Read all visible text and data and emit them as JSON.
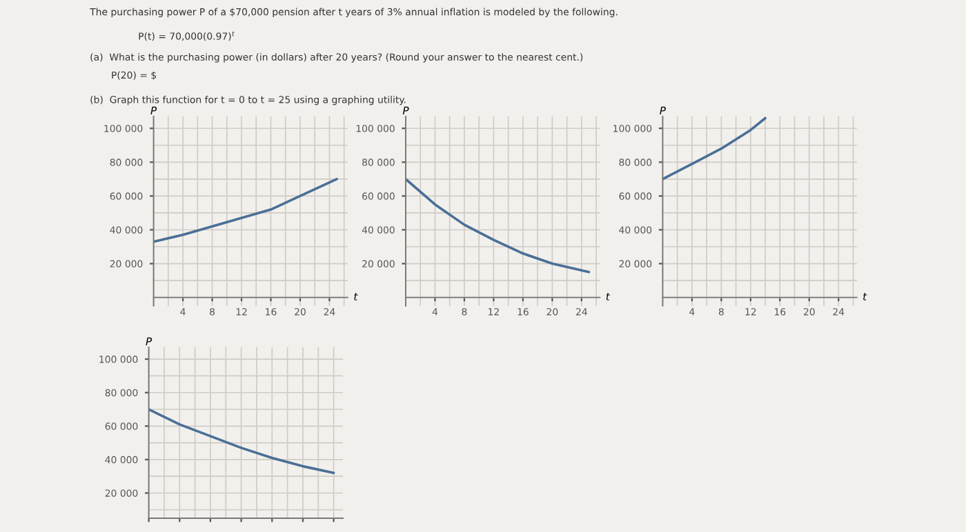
{
  "chart_data": [
    {
      "type": "line",
      "annotations": [
        "The purchasing power P of a $70,000 pension after t years of 3% annual inflation is modeled by the following.",
        "P(t) = 70,000(0.97)$^{t}$",
        "(a)  What is the purchasing power (in dollars) after 20 years? (Round your answer to the nearest cent.)",
        "P(20) = $",
        "(b)  Graph this function for t = 0 to t = 25 using a graphing utility."
      ],
      "xlabel": "t",
      "ylabel": "P",
      "x": [
        0,
        4,
        8,
        12,
        16,
        20,
        25
      ],
      "series": [
        {
          "color": "#4a6f96",
          "values": [
            33000,
            37000,
            42000,
            47000,
            52000,
            60000,
            70000
          ]
        }
      ],
      "xlim": [
        0,
        26.5
      ],
      "ylim": [
        -5000,
        107000
      ],
      "xticks": [
        4,
        8,
        12,
        16,
        20,
        24
      ],
      "yticks": [
        {
          "value": 20000,
          "label": "20 000"
        },
        {
          "value": 40000,
          "label": "40 000"
        },
        {
          "value": 60000,
          "label": "60 000"
        },
        {
          "value": 80000,
          "label": "80 000"
        },
        {
          "value": 100000,
          "label": "100 000"
        }
      ],
      "grid": true
    },
    {
      "type": "line",
      "xlabel": "t",
      "ylabel": "P",
      "x": [
        0,
        4,
        8,
        12,
        16,
        20,
        25
      ],
      "series": [
        {
          "color": "#4a6f96",
          "values": [
            70000,
            55000,
            43000,
            34000,
            26000,
            20000,
            15000
          ]
        }
      ],
      "xlim": [
        0,
        26.5
      ],
      "ylim": [
        -5000,
        107000
      ],
      "xticks": [
        4,
        8,
        12,
        16,
        20,
        24
      ],
      "yticks": [
        {
          "value": 20000,
          "label": "20 000"
        },
        {
          "value": 40000,
          "label": "40 000"
        },
        {
          "value": 60000,
          "label": "60 000"
        },
        {
          "value": 80000,
          "label": "80 000"
        },
        {
          "value": 100000,
          "label": "100 000"
        }
      ],
      "grid": true
    },
    {
      "type": "line",
      "xlabel": "t",
      "ylabel": "P",
      "x": [
        0,
        4,
        8,
        12,
        14
      ],
      "series": [
        {
          "color": "#4a6f96",
          "values": [
            70000,
            79000,
            88000,
            99000,
            106000
          ]
        }
      ],
      "xlim": [
        0,
        26.5
      ],
      "ylim": [
        -5000,
        107000
      ],
      "xticks": [
        4,
        8,
        12,
        16,
        20,
        24
      ],
      "yticks": [
        {
          "value": 20000,
          "label": "20 000"
        },
        {
          "value": 40000,
          "label": "40 000"
        },
        {
          "value": 60000,
          "label": "60 000"
        },
        {
          "value": 80000,
          "label": "80 000"
        },
        {
          "value": 100000,
          "label": "100 000"
        }
      ],
      "grid": true
    },
    {
      "type": "line",
      "ylabel": "P",
      "categories": [
        null,
        null,
        null,
        null,
        null,
        null,
        null
      ],
      "series": [
        {
          "color": "#4a6f96",
          "values": [
            70000,
            61000,
            54000,
            47000,
            41000,
            36000,
            32000
          ]
        }
      ],
      "ylim": [
        5000,
        107000
      ],
      "tick_labels": "y",
      "yticks": [
        {
          "value": 20000,
          "label": "20 000"
        },
        {
          "value": 40000,
          "label": "40 000"
        },
        {
          "value": 60000,
          "label": "60 000"
        },
        {
          "value": 80000,
          "label": "80 000"
        },
        {
          "value": 100000,
          "label": "100 000"
        }
      ],
      "grid": true
    }
  ]
}
